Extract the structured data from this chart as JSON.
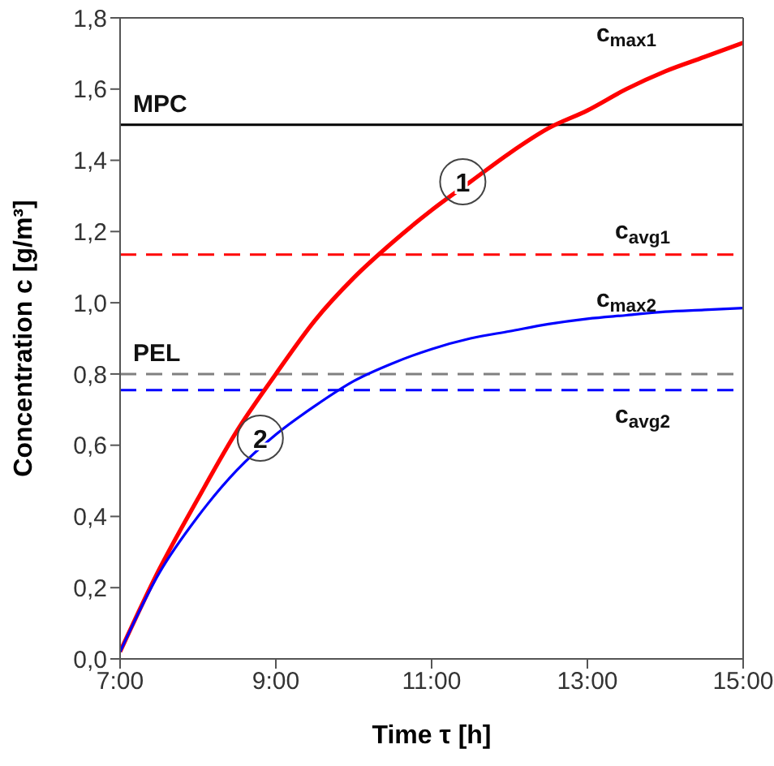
{
  "chart_data": {
    "type": "line",
    "xlabel": "Time τ [h]",
    "ylabel": "Concentration c [g/m³]",
    "x": [
      7,
      7.5,
      8,
      8.5,
      9,
      9.5,
      10,
      10.5,
      11,
      11.5,
      12,
      12.5,
      13,
      13.5,
      14,
      14.5,
      15
    ],
    "series": [
      {
        "name": "c$_{max1}$",
        "color": "#ff0000",
        "values": [
          0.02,
          0.25,
          0.45,
          0.64,
          0.8,
          0.95,
          1.07,
          1.17,
          1.26,
          1.34,
          1.42,
          1.49,
          1.54,
          1.6,
          1.65,
          1.69,
          1.73
        ]
      },
      {
        "name": "c$_{max2}$",
        "color": "#0000ff",
        "values": [
          0.02,
          0.24,
          0.4,
          0.53,
          0.63,
          0.71,
          0.78,
          0.83,
          0.87,
          0.9,
          0.92,
          0.94,
          0.955,
          0.965,
          0.975,
          0.98,
          0.985
        ]
      }
    ],
    "xlim": [
      7,
      15
    ],
    "xticks": [
      {
        "value": 7,
        "label": "7:00"
      },
      {
        "value": 9,
        "label": "9:00"
      },
      {
        "value": 11,
        "label": "11:00"
      },
      {
        "value": 13,
        "label": "13:00"
      },
      {
        "value": 15,
        "label": "15:00"
      }
    ],
    "ylim": [
      0,
      1.8
    ],
    "yticks": [
      {
        "value": 0,
        "label": "0,0"
      },
      {
        "value": 0.2,
        "label": "0,2"
      },
      {
        "value": 0.4,
        "label": "0,4"
      },
      {
        "value": 0.6,
        "label": "0,6"
      },
      {
        "value": 0.8,
        "label": "0,8"
      },
      {
        "value": 1,
        "label": "1,0"
      },
      {
        "value": 1.2,
        "label": "1,2"
      },
      {
        "value": 1.4,
        "label": "1,4"
      },
      {
        "value": 1.6,
        "label": "1,6"
      },
      {
        "value": 1.8,
        "label": "1,8"
      }
    ],
    "ref_lines": [
      {
        "axis": "y",
        "value": 1.5,
        "label": "MPC",
        "color": "#000000",
        "line_style": "solid"
      },
      {
        "axis": "y",
        "value": 0.8,
        "label": "PEL",
        "color": "#808080",
        "line_style": "dashed"
      },
      {
        "axis": "y",
        "value": 1.135,
        "label": "c$_{avg1}$",
        "color": "#ff0000",
        "line_style": "dashed"
      },
      {
        "axis": "y",
        "value": 0.755,
        "label": "c$_{avg2}$",
        "color": "#0000ff",
        "line_style": "dashed"
      }
    ],
    "annotations": [
      {
        "text": "1",
        "x": 11.4,
        "y": 1.34
      },
      {
        "text": "2",
        "x": 8.8,
        "y": 0.62
      }
    ],
    "grid": false,
    "legend": false,
    "marker": "none",
    "line_style": "solid"
  }
}
